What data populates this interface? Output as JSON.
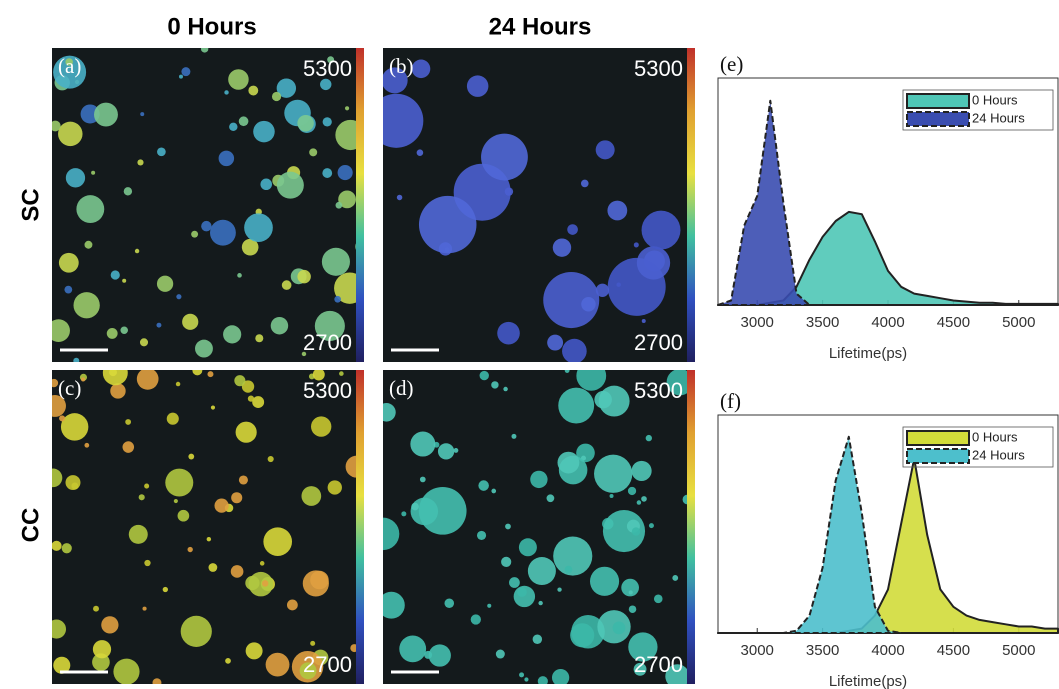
{
  "column_headers": [
    "0 Hours",
    "24 Hours"
  ],
  "row_labels": [
    "SC",
    "CC"
  ],
  "images": [
    {
      "label": "(a)",
      "scale_max": 5300,
      "scale_min": 2700
    },
    {
      "label": "(b)",
      "scale_max": 5300,
      "scale_min": 2700
    },
    {
      "label": "(c)",
      "scale_max": 5300,
      "scale_min": 2700
    },
    {
      "label": "(d)",
      "scale_max": 5300,
      "scale_min": 2700
    }
  ],
  "chart_data": [
    {
      "type": "area",
      "label": "(e)",
      "xlabel": "Lifetime(ps)",
      "x": [
        2700,
        2800,
        2900,
        3000,
        3100,
        3200,
        3300,
        3400,
        3500,
        3600,
        3700,
        3800,
        3900,
        4000,
        4100,
        4200,
        4300,
        4400,
        4500,
        4600,
        4700,
        4800,
        4900,
        5000,
        5100,
        5200,
        5300
      ],
      "series": [
        {
          "name": "0 Hours",
          "color": "#4fc6b6",
          "dashed": false,
          "values": [
            0,
            0,
            0,
            0,
            0.01,
            0.02,
            0.08,
            0.2,
            0.3,
            0.37,
            0.41,
            0.4,
            0.28,
            0.15,
            0.08,
            0.05,
            0.04,
            0.03,
            0.02,
            0.015,
            0.01,
            0.01,
            0.005,
            0.005,
            0.005,
            0.005,
            0.005
          ]
        },
        {
          "name": "24 Hours",
          "color": "#3a4db0",
          "dashed": true,
          "values": [
            0,
            0.02,
            0.35,
            0.48,
            0.9,
            0.45,
            0.05,
            0,
            0,
            0,
            0,
            0,
            0,
            0,
            0,
            0,
            0,
            0,
            0,
            0,
            0,
            0,
            0,
            0,
            0,
            0,
            0
          ]
        }
      ],
      "xlim": [
        2700,
        5300
      ],
      "xticks": [
        3000,
        3500,
        4000,
        4500,
        5000
      ],
      "ylim": [
        0,
        1
      ]
    },
    {
      "type": "area",
      "label": "(f)",
      "xlabel": "Lifetime(ps)",
      "x": [
        2700,
        2800,
        2900,
        3000,
        3100,
        3200,
        3300,
        3400,
        3500,
        3600,
        3700,
        3800,
        3900,
        4000,
        4100,
        4200,
        4300,
        4400,
        4500,
        4600,
        4700,
        4800,
        4900,
        5000,
        5100,
        5200,
        5300
      ],
      "series": [
        {
          "name": "0 Hours",
          "color": "#d2dc3a",
          "dashed": false,
          "values": [
            0,
            0,
            0,
            0,
            0,
            0,
            0,
            0,
            0,
            0,
            0.01,
            0.02,
            0.08,
            0.2,
            0.5,
            0.8,
            0.45,
            0.2,
            0.12,
            0.08,
            0.06,
            0.05,
            0.04,
            0.03,
            0.03,
            0.02,
            0.02
          ]
        },
        {
          "name": "24 Hours",
          "color": "#4dbfcc",
          "dashed": true,
          "values": [
            0,
            0,
            0,
            0,
            0,
            0,
            0.01,
            0.08,
            0.3,
            0.7,
            0.9,
            0.55,
            0.12,
            0.01,
            0,
            0,
            0,
            0,
            0,
            0,
            0,
            0,
            0,
            0,
            0,
            0,
            0
          ]
        }
      ],
      "xlim": [
        2700,
        5300
      ],
      "xticks": [
        3000,
        3500,
        4000,
        4500,
        5000
      ],
      "ylim": [
        0,
        1
      ]
    }
  ]
}
